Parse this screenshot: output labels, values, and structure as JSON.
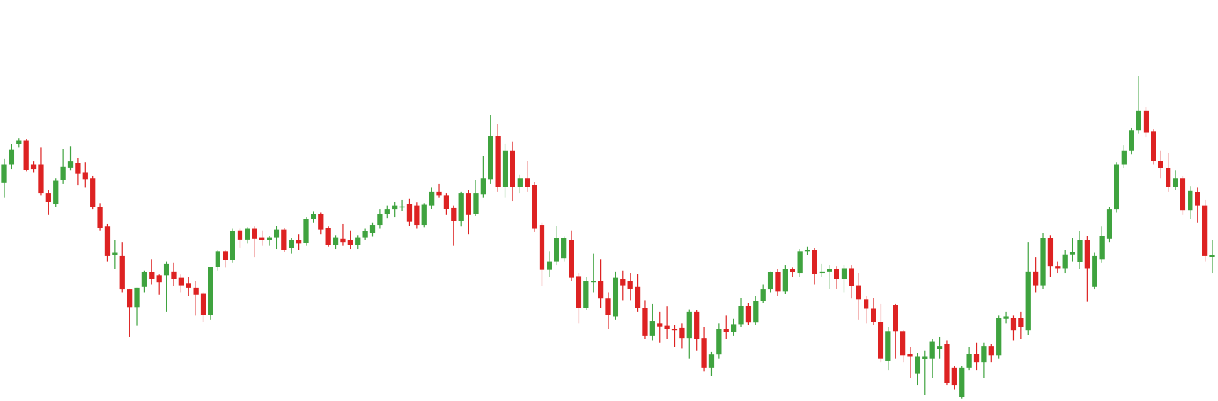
{
  "chart_data": {
    "type": "candlestick",
    "up_color": "#3fa33f",
    "down_color": "#dd2222",
    "ylim": [
      0,
      517
    ],
    "open": [
      281,
      305,
      331,
      336,
      305,
      305,
      268,
      254,
      285,
      301,
      307,
      295,
      287,
      250,
      225,
      188,
      187,
      144,
      121,
      147,
      166,
      162,
      162,
      167,
      159,
      152,
      146,
      139,
      111,
      173,
      193,
      182,
      220,
      208,
      222,
      211,
      207,
      211,
      221,
      197,
      207,
      204,
      235,
      241,
      223,
      201,
      209,
      207,
      201,
      211,
      217,
      227,
      241,
      247,
      250,
      254,
      252,
      227,
      252,
      270,
      265,
      249,
      232,
      268,
      241,
      266,
      286,
      341,
      276,
      323,
      276,
      287,
      279,
      227,
      169,
      180,
      184,
      207,
      161,
      120,
      153,
      155,
      132,
      109,
      157,
      155,
      147,
      120,
      84,
      100,
      97,
      93,
      94,
      81,
      115,
      81,
      43,
      60,
      93,
      89,
      99,
      123,
      101,
      129,
      144,
      166,
      141,
      170,
      165,
      193,
      195,
      165,
      167,
      170,
      157,
      171,
      149,
      131,
      119,
      102,
      52,
      124,
      90,
      61,
      35,
      54,
      55,
      67,
      73,
      43,
      5,
      43,
      61,
      50,
      71,
      59,
      106,
      107,
      107,
      91,
      167,
      149,
      210,
      174,
      171,
      189,
      179,
      207,
      147,
      183,
      209,
      247,
      305,
      323,
      349,
      374,
      348,
      310,
      300,
      276,
      287,
      246,
      269,
      252,
      186
    ],
    "high": [
      312,
      331,
      339,
      338,
      309,
      327,
      272,
      287,
      325,
      328,
      313,
      308,
      290,
      255,
      228,
      207,
      205,
      145,
      146,
      168,
      183,
      163,
      180,
      178,
      163,
      160,
      155,
      140,
      173,
      195,
      194,
      222,
      222,
      224,
      225,
      220,
      213,
      226,
      223,
      210,
      215,
      237,
      244,
      243,
      225,
      214,
      228,
      220,
      214,
      222,
      230,
      247,
      252,
      257,
      259,
      261,
      256,
      255,
      275,
      280,
      268,
      252,
      270,
      272,
      285,
      316,
      369,
      357,
      332,
      334,
      292,
      310,
      282,
      230,
      193,
      226,
      212,
      220,
      165,
      160,
      190,
      183,
      140,
      167,
      168,
      165,
      164,
      130,
      125,
      115,
      122,
      98,
      100,
      118,
      117,
      95,
      63,
      100,
      110,
      106,
      133,
      126,
      135,
      150,
      167,
      170,
      175,
      172,
      196,
      199,
      197,
      177,
      175,
      174,
      175,
      175,
      165,
      135,
      133,
      125,
      95,
      125,
      92,
      70,
      62,
      65,
      80,
      83,
      78,
      45,
      45,
      70,
      75,
      75,
      73,
      110,
      115,
      110,
      115,
      205,
      185,
      217,
      214,
      180,
      195,
      210,
      219,
      213,
      191,
      225,
      250,
      308,
      330,
      352,
      419,
      379,
      350,
      323,
      320,
      297,
      290,
      277,
      275,
      259,
      207
    ],
    "low": [
      262,
      299,
      327,
      296,
      295,
      265,
      240,
      250,
      280,
      297,
      278,
      275,
      247,
      220,
      180,
      170,
      140,
      83,
      97,
      140,
      150,
      137,
      115,
      148,
      140,
      135,
      110,
      102,
      105,
      168,
      172,
      178,
      198,
      203,
      185,
      200,
      200,
      196,
      192,
      190,
      195,
      200,
      230,
      215,
      199,
      196,
      200,
      196,
      196,
      207,
      212,
      222,
      236,
      237,
      245,
      226,
      222,
      224,
      248,
      262,
      240,
      200,
      225,
      215,
      238,
      262,
      280,
      270,
      262,
      258,
      268,
      270,
      218,
      148,
      160,
      175,
      180,
      155,
      100,
      117,
      140,
      120,
      93,
      105,
      130,
      130,
      115,
      80,
      78,
      75,
      80,
      70,
      68,
      55,
      65,
      38,
      32,
      55,
      80,
      84,
      95,
      98,
      98,
      126,
      140,
      135,
      138,
      160,
      160,
      188,
      150,
      160,
      145,
      145,
      140,
      132,
      105,
      100,
      98,
      50,
      40,
      55,
      50,
      30,
      20,
      8,
      30,
      55,
      20,
      15,
      3,
      40,
      40,
      30,
      50,
      55,
      100,
      78,
      80,
      85,
      140,
      145,
      160,
      165,
      165,
      180,
      170,
      128,
      144,
      178,
      205,
      243,
      300,
      318,
      345,
      340,
      305,
      287,
      270,
      272,
      240,
      235,
      230,
      180,
      165
    ],
    "close": [
      305,
      324,
      336,
      298,
      299,
      268,
      257,
      284,
      302,
      309,
      293,
      286,
      250,
      223,
      187,
      191,
      144,
      121,
      146,
      166,
      157,
      153,
      177,
      157,
      149,
      146,
      137,
      111,
      173,
      193,
      182,
      219,
      208,
      222,
      209,
      207,
      211,
      221,
      195,
      207,
      203,
      235,
      241,
      221,
      201,
      211,
      205,
      201,
      211,
      219,
      227,
      241,
      247,
      252,
      251,
      231,
      227,
      253,
      270,
      265,
      248,
      232,
      268,
      240,
      268,
      287,
      341,
      276,
      323,
      276,
      287,
      276,
      222,
      169,
      180,
      210,
      210,
      159,
      120,
      155,
      155,
      132,
      111,
      159,
      149,
      145,
      120,
      84,
      103,
      96,
      93,
      91,
      81,
      115,
      80,
      43,
      60,
      93,
      89,
      99,
      123,
      101,
      129,
      144,
      166,
      141,
      170,
      166,
      193,
      195,
      164,
      167,
      170,
      157,
      171,
      148,
      131,
      119,
      102,
      55,
      90,
      90,
      59,
      57,
      57,
      57,
      77,
      71,
      23,
      20,
      43,
      61,
      50,
      71,
      59,
      107,
      109,
      91,
      95,
      167,
      149,
      210,
      174,
      171,
      189,
      192,
      207,
      171,
      187,
      213,
      247,
      305,
      323,
      349,
      374,
      346,
      310,
      300,
      276,
      287,
      246,
      271,
      252,
      187,
      188
    ]
  }
}
